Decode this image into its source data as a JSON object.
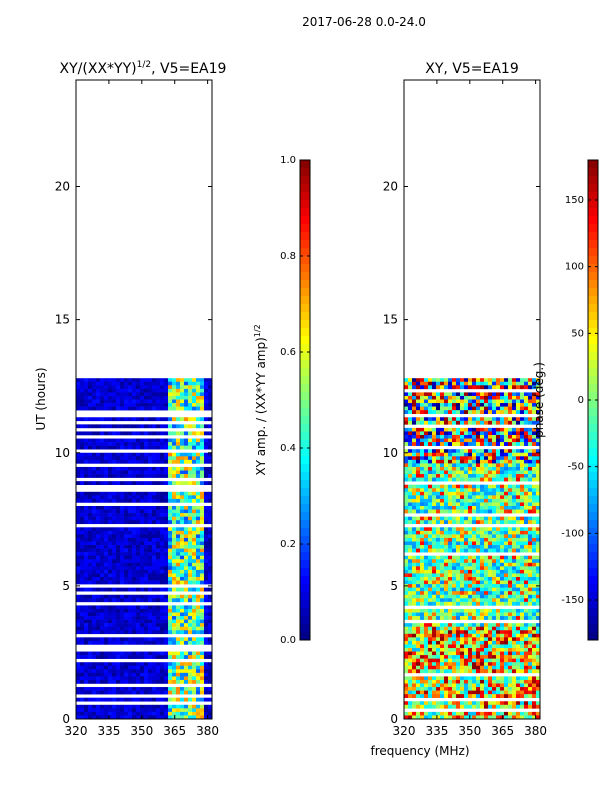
{
  "figure_title": "2017-06-28 0.0-24.0",
  "xlabel_shared": "frequency (MHz)",
  "chart_data": [
    {
      "type": "heatmap",
      "title_main": "XY/(XX*YY)",
      "title_sup": "1/2",
      "title_suffix": ", V5=EA19",
      "ylabel": "UT (hours)",
      "xlim": [
        320,
        382
      ],
      "ylim": [
        0,
        24
      ],
      "xticks": [
        320,
        335,
        350,
        365,
        380
      ],
      "yticks": [
        0,
        5,
        10,
        15,
        20
      ],
      "data_extent_hours": [
        0,
        12.8
      ],
      "colorbar": {
        "label_main": "XY amp. / (XX*YY amp)",
        "label_sup": "1/2",
        "range": [
          0.0,
          1.0
        ],
        "ticks": [
          "0.0",
          "0.2",
          "0.4",
          "0.6",
          "0.8",
          "1.0"
        ]
      }
    },
    {
      "type": "heatmap",
      "title": "XY, V5=EA19",
      "xlim": [
        320,
        382
      ],
      "ylim": [
        0,
        24
      ],
      "xticks": [
        320,
        335,
        350,
        365,
        380
      ],
      "yticks": [
        0,
        5,
        10,
        15,
        20
      ],
      "data_extent_hours": [
        0,
        12.8
      ],
      "colorbar": {
        "label": "phase (deg.)",
        "range": [
          -180,
          180
        ],
        "ticks": [
          -150,
          -100,
          -50,
          0,
          50,
          100,
          150
        ]
      }
    }
  ],
  "colors": {
    "axis": "#000000",
    "background": "#ffffff"
  }
}
